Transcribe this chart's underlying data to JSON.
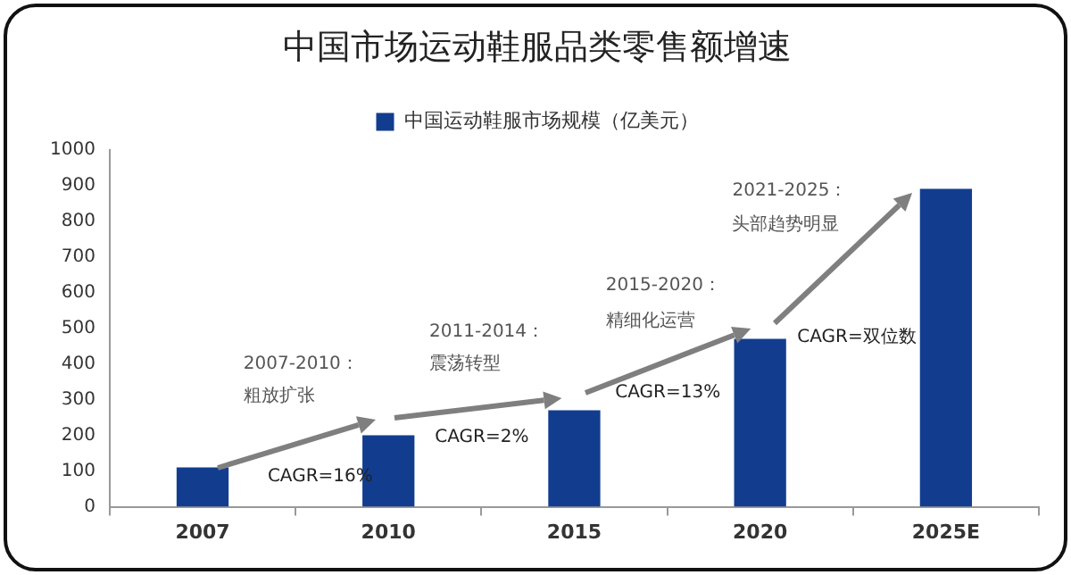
{
  "chart_data": {
    "type": "bar",
    "title": "中国市场运动鞋服品类零售额增速",
    "categories": [
      "2007",
      "2010",
      "2015",
      "2020",
      "2025E"
    ],
    "series": [
      {
        "name": "中国运动鞋服市场规模（亿美元）",
        "color": "#123d8f",
        "values": [
          110,
          200,
          270,
          470,
          890
        ]
      }
    ],
    "ylim": [
      0,
      1000
    ],
    "yticks": [
      0,
      100,
      200,
      300,
      400,
      500,
      600,
      700,
      800,
      900,
      1000
    ],
    "grid": false,
    "legend": "top",
    "annotations": [
      "2007-2010：",
      "粗放扩张",
      "CAGR=16%",
      "2011-2014：",
      "震荡转型",
      "CAGR=2%",
      "2015-2020：",
      "精细化运营",
      "CAGR=13%",
      "2021-2025：",
      "头部趋势明显",
      "CAGR=双位数"
    ]
  }
}
